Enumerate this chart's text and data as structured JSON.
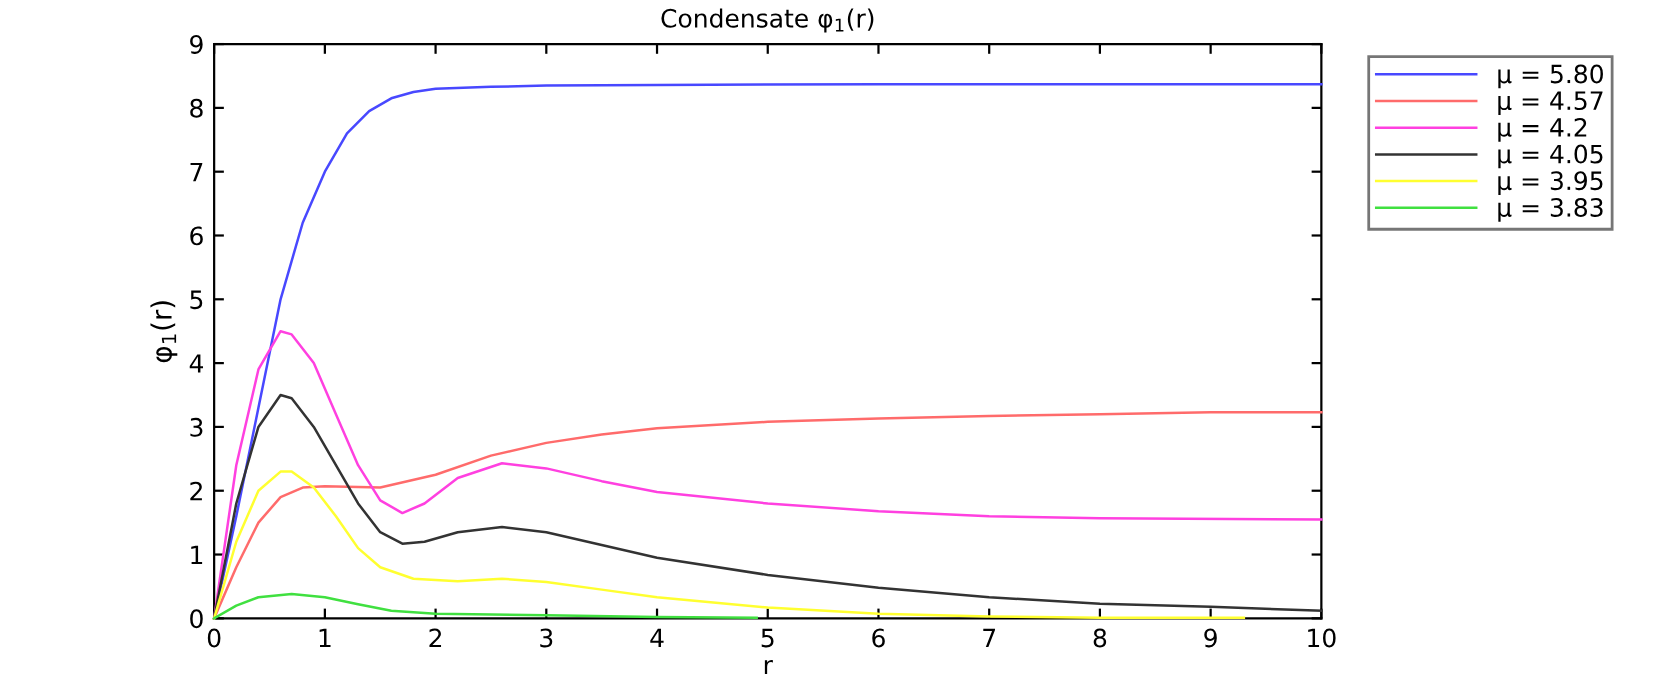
{
  "chart_data": {
    "type": "line",
    "title": "Condensate φ$_{1}$(r)",
    "xlabel": "r",
    "ylabel": "φ$_{1}$(r)",
    "xlim": [
      0,
      10
    ],
    "ylim": [
      0,
      9
    ],
    "xticks": [
      0,
      1,
      2,
      3,
      4,
      5,
      6,
      7,
      8,
      9,
      10
    ],
    "yticks": [
      0,
      1,
      2,
      3,
      4,
      5,
      6,
      7,
      8,
      9
    ],
    "grid": false,
    "legend": "top right",
    "marker": "none",
    "line_style": "solid",
    "series": [
      {
        "name": "μ = 5.80",
        "color": "#4848ff",
        "x": [
          0,
          0.2,
          0.4,
          0.6,
          0.8,
          1.0,
          1.2,
          1.4,
          1.6,
          1.8,
          2.0,
          2.5,
          3,
          4,
          6,
          10
        ],
        "values": [
          0,
          1.6,
          3.3,
          5.0,
          6.2,
          7.0,
          7.6,
          7.95,
          8.15,
          8.25,
          8.3,
          8.33,
          8.35,
          8.36,
          8.37,
          8.37
        ]
      },
      {
        "name": "μ = 4.57",
        "color": "#ff6b6b",
        "x": [
          0,
          0.2,
          0.4,
          0.6,
          0.8,
          1.0,
          1.5,
          2,
          2.5,
          3,
          3.5,
          4,
          5,
          6,
          7,
          8,
          9,
          10
        ],
        "values": [
          0,
          0.8,
          1.5,
          1.9,
          2.05,
          2.07,
          2.05,
          2.25,
          2.55,
          2.75,
          2.88,
          2.98,
          3.08,
          3.13,
          3.17,
          3.2,
          3.23,
          3.23
        ]
      },
      {
        "name": "μ = 4.2",
        "color": "#ff40e0",
        "x": [
          0,
          0.2,
          0.4,
          0.6,
          0.7,
          0.9,
          1.1,
          1.3,
          1.5,
          1.7,
          1.9,
          2.2,
          2.6,
          3,
          3.5,
          4,
          5,
          6,
          7,
          8,
          10
        ],
        "values": [
          0,
          2.4,
          3.9,
          4.5,
          4.45,
          4.0,
          3.2,
          2.4,
          1.85,
          1.65,
          1.8,
          2.2,
          2.43,
          2.35,
          2.15,
          1.98,
          1.8,
          1.68,
          1.6,
          1.57,
          1.55
        ]
      },
      {
        "name": "μ = 4.05",
        "color": "#333333",
        "x": [
          0,
          0.2,
          0.4,
          0.6,
          0.7,
          0.9,
          1.1,
          1.3,
          1.5,
          1.7,
          1.9,
          2.2,
          2.6,
          3,
          3.5,
          4,
          5,
          6,
          7,
          8,
          9,
          10
        ],
        "values": [
          0,
          1.8,
          3.0,
          3.5,
          3.45,
          3.0,
          2.4,
          1.8,
          1.35,
          1.17,
          1.2,
          1.35,
          1.43,
          1.35,
          1.15,
          0.95,
          0.68,
          0.48,
          0.33,
          0.23,
          0.18,
          0.12
        ]
      },
      {
        "name": "μ = 3.95",
        "color": "#ffff30",
        "x": [
          0,
          0.2,
          0.4,
          0.6,
          0.7,
          0.9,
          1.1,
          1.3,
          1.5,
          1.8,
          2.2,
          2.6,
          3,
          3.5,
          4,
          5,
          6,
          7,
          8,
          9.3
        ],
        "values": [
          0,
          1.2,
          2.0,
          2.3,
          2.3,
          2.05,
          1.6,
          1.1,
          0.8,
          0.62,
          0.58,
          0.62,
          0.57,
          0.45,
          0.33,
          0.17,
          0.07,
          0.03,
          0.01,
          0.01
        ]
      },
      {
        "name": "μ = 3.83",
        "color": "#40e040",
        "x": [
          0,
          0.2,
          0.4,
          0.7,
          1.0,
          1.3,
          1.6,
          2,
          3,
          4,
          4.9
        ],
        "values": [
          0,
          0.2,
          0.33,
          0.38,
          0.33,
          0.22,
          0.12,
          0.07,
          0.05,
          0.02,
          0.01
        ]
      }
    ]
  }
}
